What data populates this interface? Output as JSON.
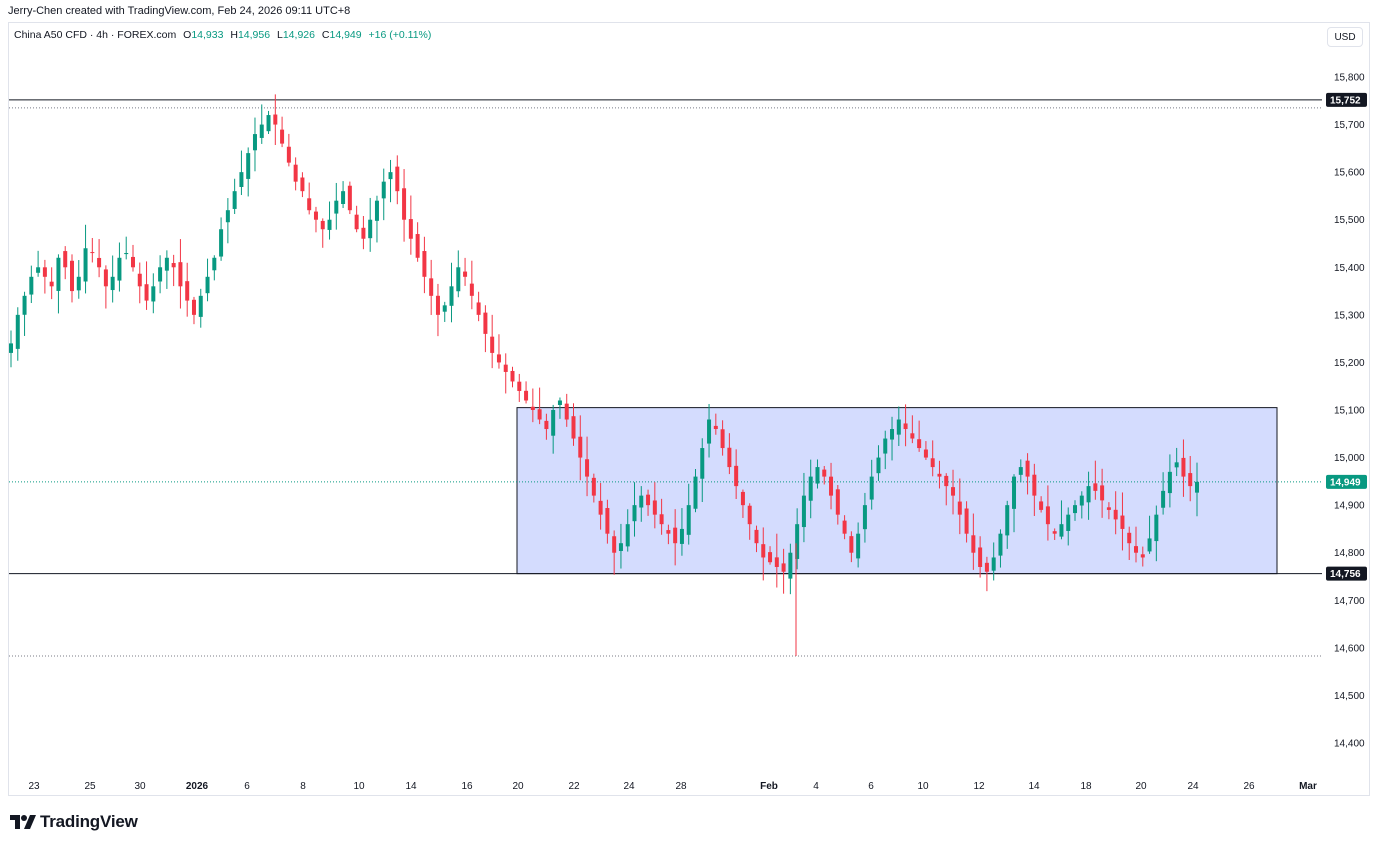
{
  "header": {
    "caption": "Jerry-Chen created with TradingView.com, Feb 24, 2026 09:11 UTC+8",
    "currency_button": "USD"
  },
  "legend": {
    "symbol": "China A50 CFD · 4h · FOREX.com",
    "open_label": "O",
    "open": "14,933",
    "high_label": "H",
    "high": "14,956",
    "low_label": "L",
    "low": "14,926",
    "close_label": "C",
    "close": "14,949",
    "change": "+16 (+0.11%)"
  },
  "footer": {
    "brand": "TradingView",
    "logo_icon": "tradingview-logo-icon"
  },
  "colors": {
    "up": "#089981",
    "down": "#f23645",
    "range_fill": "#c3cffd",
    "range_border": "#131722",
    "last_price": "#089981"
  },
  "chart_data": {
    "type": "candlestick",
    "timeframe": "4h",
    "ylim": [
      14350,
      15880
    ],
    "y_ticks": [
      "15,800",
      "15,700",
      "15,600",
      "15,500",
      "15,400",
      "15,300",
      "15,200",
      "15,100",
      "15,000",
      "14,900",
      "14,800",
      "14,700",
      "14,600",
      "14,500",
      "14,400"
    ],
    "x_ticks": [
      "23",
      "25",
      "30",
      "2026",
      "6",
      "8",
      "10",
      "14",
      "16",
      "20",
      "22",
      "24",
      "28",
      "Feb",
      "4",
      "6",
      "10",
      "12",
      "14",
      "18",
      "20",
      "24",
      "26",
      "Mar"
    ],
    "horizontal_lines": [
      {
        "price": 15752,
        "label": "15,752",
        "style": "solid"
      },
      {
        "price": 14756,
        "label": "14,756",
        "style": "solid"
      }
    ],
    "dotted_lines": [
      15735,
      14583
    ],
    "last_price": {
      "price": 14949,
      "label": "14,949"
    },
    "range_box": {
      "top": 15105,
      "bottom": 14756,
      "from": "Jan 20",
      "to": "Feb 26"
    },
    "close_path": [
      15240,
      15300,
      15340,
      15380,
      15400,
      15380,
      15360,
      15420,
      15400,
      15350,
      15380,
      15440,
      15430,
      15400,
      15360,
      15380,
      15420,
      15430,
      15400,
      15360,
      15330,
      15360,
      15400,
      15420,
      15400,
      15360,
      15330,
      15300,
      15340,
      15380,
      15420,
      15480,
      15520,
      15560,
      15600,
      15640,
      15680,
      15700,
      15720,
      15700,
      15660,
      15620,
      15580,
      15560,
      15520,
      15500,
      15480,
      15500,
      15540,
      15560,
      15520,
      15480,
      15460,
      15500,
      15540,
      15580,
      15600,
      15560,
      15500,
      15460,
      15420,
      15380,
      15340,
      15300,
      15320,
      15360,
      15400,
      15380,
      15340,
      15300,
      15260,
      15220,
      15200,
      15180,
      15160,
      15140,
      15120,
      15100,
      15080,
      15060,
      15100,
      15120,
      15080,
      15040,
      15000,
      14960,
      14920,
      14880,
      14840,
      14800,
      14820,
      14860,
      14900,
      14920,
      14900,
      14880,
      14860,
      14840,
      14820,
      14850,
      14900,
      14960,
      15020,
      15080,
      15060,
      15020,
      14980,
      14940,
      14900,
      14860,
      14820,
      14790,
      14780,
      14770,
      14760,
      14800,
      14860,
      14920,
      14960,
      14980,
      14960,
      14920,
      14880,
      14840,
      14800,
      14840,
      14900,
      14960,
      15000,
      15040,
      15060,
      15080,
      15060,
      15040,
      15020,
      15000,
      14980,
      14960,
      14940,
      14920,
      14880,
      14840,
      14800,
      14770,
      14760,
      14790,
      14840,
      14900,
      14960,
      14980,
      14960,
      14920,
      14890,
      14860,
      14840,
      14860,
      14880,
      14900,
      14920,
      14940,
      14930,
      14910,
      14890,
      14870,
      14850,
      14820,
      14800,
      14790,
      14830,
      14880,
      14930,
      14970,
      14990,
      14960,
      14940,
      14949
    ]
  }
}
